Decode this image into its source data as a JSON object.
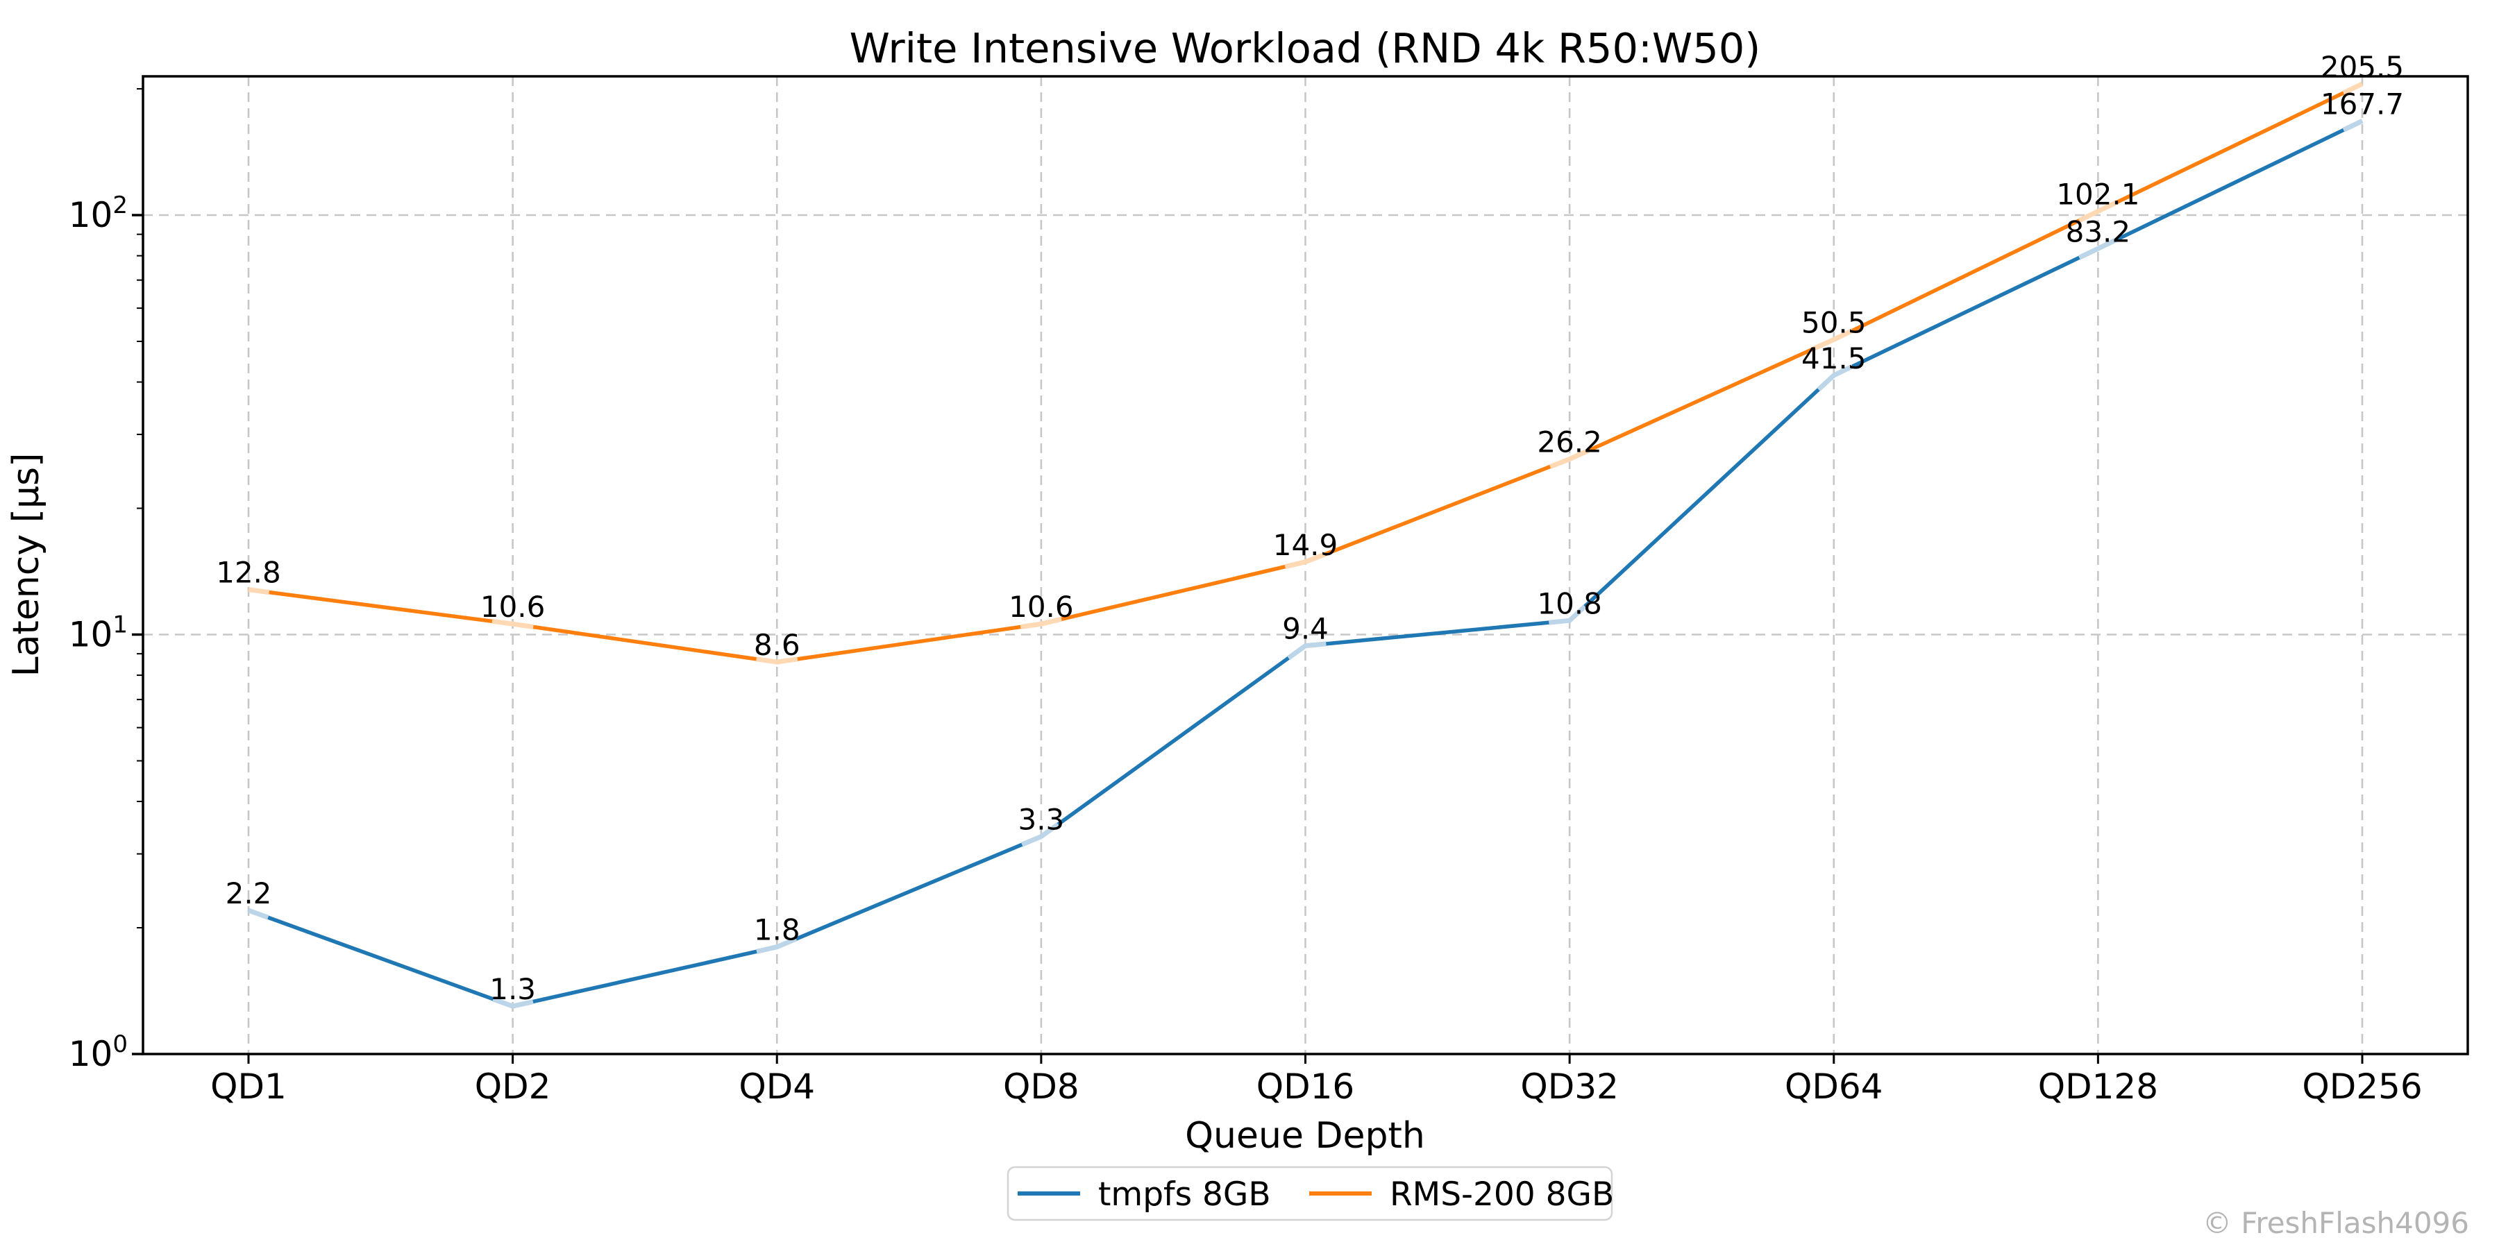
{
  "chart_data": {
    "type": "line",
    "title": "Write Intensive Workload (RND 4k R50:W50)",
    "xlabel": "Queue Depth",
    "ylabel": "Latency [μs]",
    "categories": [
      "QD1",
      "QD2",
      "QD4",
      "QD8",
      "QD16",
      "QD32",
      "QD64",
      "QD128",
      "QD256"
    ],
    "series": [
      {
        "name": "tmpfs 8GB",
        "color": "#1f77b4",
        "marker_color": "#bcd5e8",
        "values": [
          2.2,
          1.3,
          1.8,
          3.3,
          9.4,
          10.8,
          41.5,
          83.2,
          167.7
        ]
      },
      {
        "name": "RMS-200 8GB",
        "color": "#ff7f0e",
        "marker_color": "#ffd8b4",
        "values": [
          12.8,
          10.6,
          8.6,
          10.6,
          14.9,
          26.2,
          50.5,
          102.1,
          205.5
        ]
      }
    ],
    "yscale": "log",
    "ylim": [
      1,
      214
    ],
    "ytick_exponents": [
      0,
      1,
      2
    ],
    "grid": true,
    "grid_color": "#c7c7c7",
    "spine_color": "#000000",
    "background_color": "#ffffff",
    "legend_position": "bottom-center",
    "legend_border_color": "#d4d4d4",
    "watermark": "© FreshFlash4096",
    "watermark_color": "#b4b4b4"
  }
}
